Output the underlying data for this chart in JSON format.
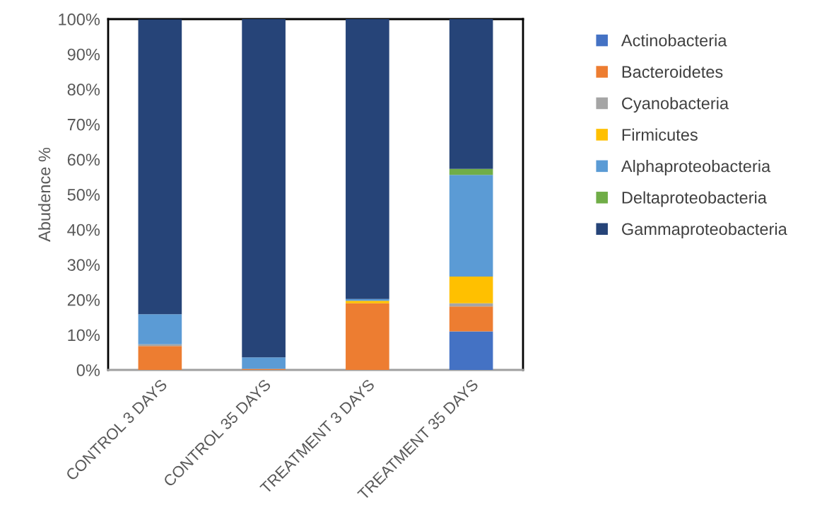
{
  "chart_data": {
    "type": "bar",
    "stacked": true,
    "ylabel": "Abudence %",
    "categories": [
      "CONTROL 3 DAYS",
      "CONTROL 35 DAYS",
      "TREATMENT 3 DAYS",
      "TREATMENT 35 DAYS"
    ],
    "series": [
      {
        "name": "Actinobacteria",
        "color": "#4472c4",
        "values": [
          0,
          0,
          0,
          11.0
        ]
      },
      {
        "name": "Bacteroidetes",
        "color": "#ed7d31",
        "values": [
          6.8,
          0.3,
          19.0,
          7.1
        ]
      },
      {
        "name": "Cyanobacteria",
        "color": "#a5a5a5",
        "values": [
          0.5,
          0,
          0,
          0.9
        ]
      },
      {
        "name": "Firmicutes",
        "color": "#ffc000",
        "values": [
          0,
          0,
          0.7,
          7.6
        ]
      },
      {
        "name": "Alphaproteobacteria",
        "color": "#5b9bd5",
        "values": [
          8.6,
          3.3,
          0.5,
          29.0
        ]
      },
      {
        "name": "Deltaproteobacteria",
        "color": "#70ad47",
        "values": [
          null,
          0,
          0,
          1.7
        ]
      },
      {
        "name": "Gammaproteobacteria",
        "color": "#264478",
        "values": [
          84.0,
          96.4,
          79.8,
          42.7
        ]
      }
    ],
    "ylim": [
      0,
      100
    ],
    "yticks": [
      {
        "value": 0,
        "label": "0%"
      },
      {
        "value": 10,
        "label": "10%"
      },
      {
        "value": 20,
        "label": "20%"
      },
      {
        "value": 30,
        "label": "30%"
      },
      {
        "value": 40,
        "label": "40%"
      },
      {
        "value": 50,
        "label": "50%"
      },
      {
        "value": 60,
        "label": "60%"
      },
      {
        "value": 70,
        "label": "70%"
      },
      {
        "value": 80,
        "label": "80%"
      },
      {
        "value": 90,
        "label": "90%"
      },
      {
        "value": 100,
        "label": "100%"
      }
    ],
    "grid": false,
    "legend": "right"
  }
}
